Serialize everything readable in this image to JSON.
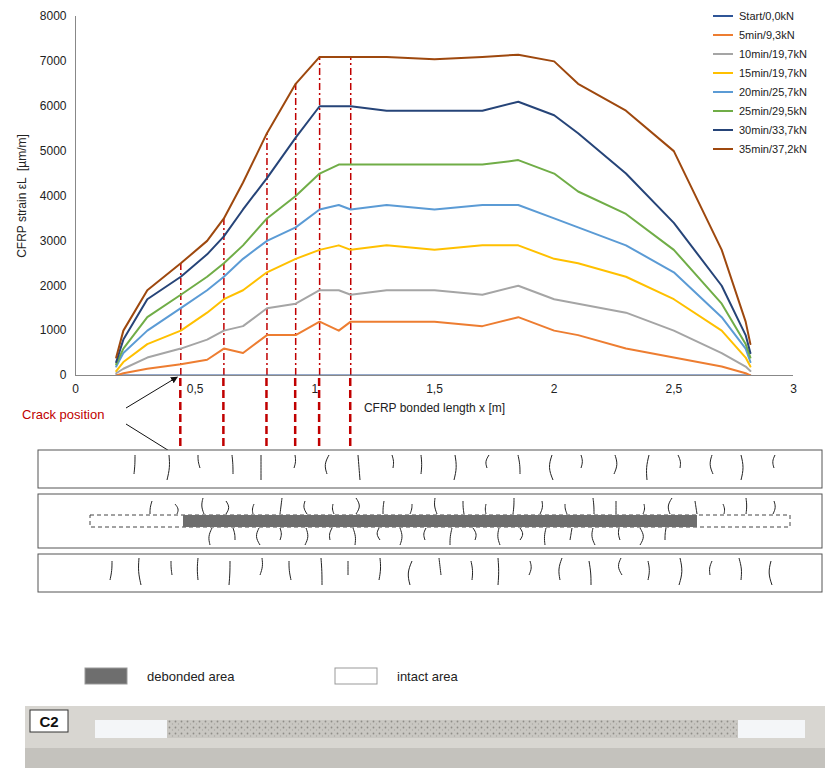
{
  "chart_data": {
    "type": "line",
    "xlabel": "CFRP bonded length x [m]",
    "ylabel": "CFRP strain εL  [µm/m]",
    "x": [
      0.17,
      0.2,
      0.3,
      0.44,
      0.55,
      0.62,
      0.7,
      0.8,
      0.92,
      1.02,
      1.1,
      1.15,
      1.3,
      1.5,
      1.7,
      1.85,
      2.0,
      2.1,
      2.3,
      2.5,
      2.7,
      2.8,
      2.82
    ],
    "series": [
      {
        "name": "Start/0,0kN",
        "color": "#2f5597",
        "values": [
          0,
          0,
          0,
          0,
          0,
          0,
          0,
          0,
          0,
          0,
          0,
          0,
          0,
          0,
          0,
          0,
          0,
          0,
          0,
          0,
          0,
          0,
          0
        ]
      },
      {
        "name": "5min/9,3kN",
        "color": "#ed7d31",
        "values": [
          0,
          50,
          150,
          250,
          350,
          600,
          500,
          900,
          900,
          1200,
          1000,
          1200,
          1200,
          1200,
          1100,
          1300,
          1000,
          900,
          600,
          400,
          200,
          50,
          0
        ]
      },
      {
        "name": "10min/19,7kN",
        "color": "#a5a5a5",
        "values": [
          50,
          150,
          400,
          600,
          800,
          1000,
          1100,
          1500,
          1600,
          1900,
          1900,
          1800,
          1900,
          1900,
          1800,
          2000,
          1700,
          1600,
          1400,
          1000,
          500,
          200,
          100
        ]
      },
      {
        "name": "15min/19,7kN",
        "color": "#ffc000",
        "values": [
          100,
          300,
          700,
          1000,
          1400,
          1700,
          1900,
          2300,
          2600,
          2800,
          2900,
          2800,
          2900,
          2800,
          2900,
          2900,
          2600,
          2500,
          2200,
          1700,
          1000,
          400,
          200
        ]
      },
      {
        "name": "20min/25,7kN",
        "color": "#5b9bd5",
        "values": [
          200,
          500,
          1000,
          1500,
          1900,
          2200,
          2600,
          3000,
          3300,
          3700,
          3800,
          3700,
          3800,
          3700,
          3800,
          3800,
          3500,
          3300,
          2900,
          2300,
          1300,
          600,
          300
        ]
      },
      {
        "name": "25min/29,5kN",
        "color": "#70ad47",
        "values": [
          250,
          600,
          1300,
          1800,
          2200,
          2500,
          2900,
          3500,
          4000,
          4500,
          4700,
          4700,
          4700,
          4700,
          4700,
          4800,
          4500,
          4100,
          3600,
          2800,
          1600,
          700,
          400
        ]
      },
      {
        "name": "30min/33,7kN",
        "color": "#264478",
        "values": [
          300,
          800,
          1700,
          2200,
          2700,
          3100,
          3700,
          4400,
          5300,
          6000,
          6000,
          6000,
          5900,
          5900,
          5900,
          6100,
          5800,
          5400,
          4500,
          3400,
          2000,
          900,
          500
        ]
      },
      {
        "name": "35min/37,2kN",
        "color": "#9e480e",
        "values": [
          400,
          1000,
          1900,
          2500,
          3000,
          3500,
          4300,
          5400,
          6500,
          7100,
          7100,
          7100,
          7100,
          7050,
          7100,
          7150,
          7000,
          6500,
          5900,
          5000,
          2800,
          1200,
          700
        ]
      }
    ],
    "xlim": [
      0,
      3
    ],
    "ylim": [
      0,
      8000
    ],
    "xticks": [
      0,
      {
        "value": 0.5,
        "label": "0,5"
      },
      1,
      {
        "value": 1.5,
        "label": "1,5"
      },
      2,
      {
        "value": 2.5,
        "label": "2,5"
      },
      3
    ],
    "yticks": [
      0,
      1000,
      2000,
      3000,
      4000,
      5000,
      6000,
      7000,
      8000
    ],
    "legend": "top-right",
    "grid": false,
    "crack_positions": [
      0.44,
      0.62,
      0.8,
      0.92,
      1.02,
      1.15
    ],
    "crack_color": "#c00000",
    "annotations": [
      {
        "text": "Crack position",
        "x": 0.44
      }
    ]
  },
  "diagram": {
    "area_legend": [
      {
        "label": "debonded area",
        "color": "#6e6e6e"
      },
      {
        "label": "intact area",
        "color": "#ffffff"
      }
    ],
    "specimen": "C2"
  }
}
